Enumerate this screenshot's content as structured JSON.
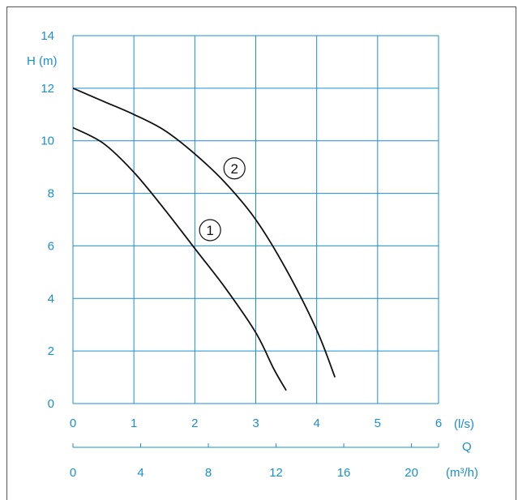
{
  "chart_data": {
    "type": "line",
    "ylabel": "H (m)",
    "x_unit_label": "(l/s)",
    "secondary_axis_name": "Q",
    "secondary_unit_label": "(m³/h)",
    "xlim": [
      0,
      6
    ],
    "ylim": [
      0,
      14
    ],
    "x_ticks": [
      "0",
      "1",
      "2",
      "3",
      "4",
      "5",
      "6"
    ],
    "y_ticks": [
      "0",
      "2",
      "4",
      "6",
      "8",
      "10",
      "12",
      "14"
    ],
    "secondary_xlim": [
      0,
      21.6
    ],
    "secondary_ticks": [
      "0",
      "4",
      "8",
      "12",
      "16",
      "20"
    ],
    "grid": true,
    "series": [
      {
        "name": "1",
        "points": [
          [
            0,
            10.5
          ],
          [
            0.5,
            9.9
          ],
          [
            1,
            8.8
          ],
          [
            1.5,
            7.4
          ],
          [
            2,
            5.9
          ],
          [
            2.5,
            4.4
          ],
          [
            3,
            2.7
          ],
          [
            3.3,
            1.3
          ],
          [
            3.5,
            0.5
          ]
        ]
      },
      {
        "name": "2",
        "points": [
          [
            0,
            12
          ],
          [
            0.5,
            11.5
          ],
          [
            1,
            11
          ],
          [
            1.5,
            10.4
          ],
          [
            2,
            9.5
          ],
          [
            2.5,
            8.4
          ],
          [
            3,
            7
          ],
          [
            3.5,
            5.1
          ],
          [
            4,
            2.8
          ],
          [
            4.3,
            1
          ]
        ]
      }
    ]
  },
  "colors": {
    "axis": "#1a8fcf",
    "curve": "#111111"
  }
}
